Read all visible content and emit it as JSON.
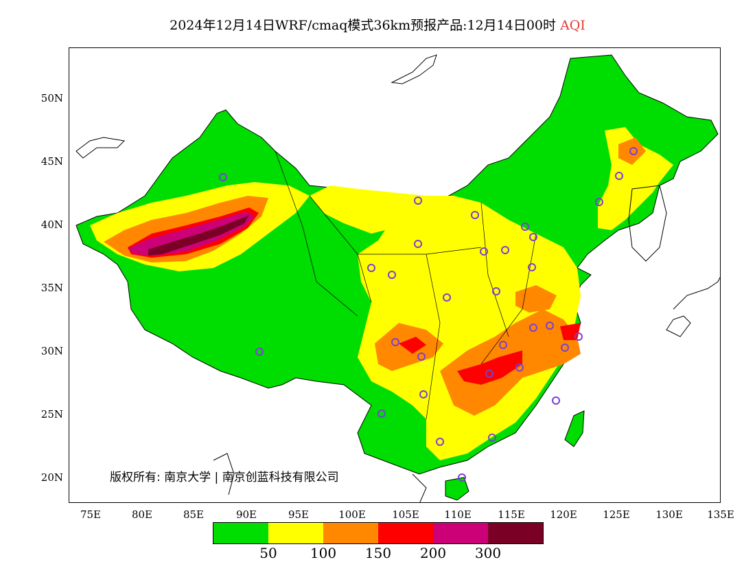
{
  "title": {
    "main": "2024年12月14日WRF/cmaq模式36km预报产品:12月14日00时",
    "variable": "AQI"
  },
  "copyright": "版权所有: 南京大学 | 南京创蓝科技有限公司",
  "axes": {
    "lat_labels": [
      "50N",
      "45N",
      "40N",
      "35N",
      "30N",
      "25N",
      "20N"
    ],
    "lon_labels": [
      "75E",
      "80E",
      "85E",
      "90E",
      "95E",
      "100E",
      "105E",
      "110E",
      "115E",
      "120E",
      "125E",
      "130E",
      "135E"
    ]
  },
  "legend": {
    "colors": [
      "#00dd00",
      "#ffff00",
      "#ff8800",
      "#ff0000",
      "#cc0077",
      "#7a0026"
    ],
    "labels": [
      "50",
      "100",
      "150",
      "200",
      "300"
    ]
  },
  "colors": {
    "good": "#00dd00",
    "moderate": "#ffff00",
    "sensitive": "#ff8800",
    "unhealthy": "#ff0000",
    "very_unhealthy": "#cc0077",
    "hazardous": "#7a0026",
    "station_marker": "#7b3fd6"
  }
}
